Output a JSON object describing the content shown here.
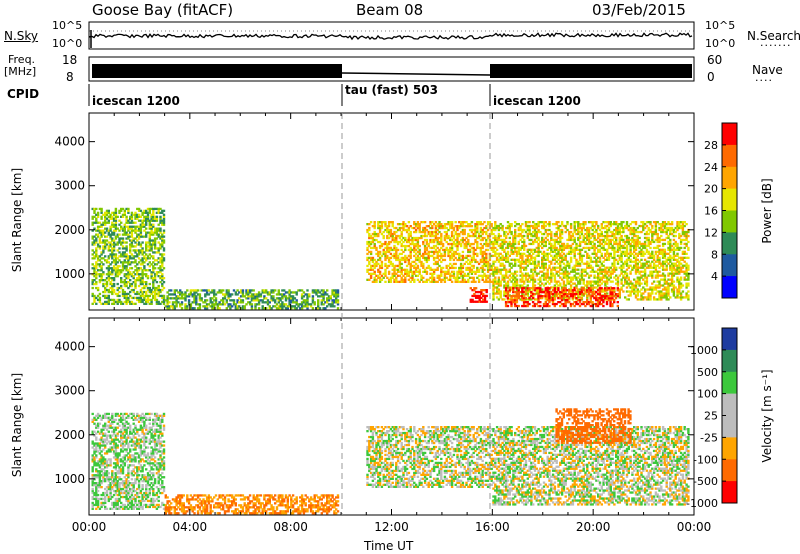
{
  "header": {
    "station": "Goose Bay (fitACF)",
    "beam": "Beam 08",
    "date": "03/Feb/2015"
  },
  "panels": {
    "noise": {
      "left_label": "N.Sky",
      "left_ticks": [
        "10^5",
        "10^0"
      ],
      "right_ticks": [
        "10^5",
        "10^0"
      ],
      "right_label": "N.Search"
    },
    "freq": {
      "left_label_top": "Freq.",
      "left_label_unit": "[MHz]",
      "left_ticks": [
        "18",
        "8"
      ],
      "right_ticks": [
        "60",
        "0"
      ],
      "right_label": "Nave"
    },
    "cpid": {
      "label": "CPID",
      "segments": [
        "icescan 1200",
        "tau (fast) 503",
        "icescan 1200"
      ]
    }
  },
  "chart_data": [
    {
      "type": "heatmap",
      "name": "power",
      "ylabel": "Slant Range [km]",
      "xlabel": "",
      "xlim": [
        "00:00",
        "24:00"
      ],
      "ylim": [
        180,
        4650
      ],
      "xticks": [
        "00:00",
        "04:00",
        "08:00",
        "12:00",
        "16:00",
        "20:00",
        "00:00"
      ],
      "yticks": [
        1000,
        2000,
        3000,
        4000
      ],
      "colorbar": {
        "label": "Power [dB]",
        "ticks": [
          "28",
          "24",
          "20",
          "16",
          "12",
          "8",
          "4"
        ],
        "colors": [
          "#ff0000",
          "#ff6a00",
          "#ffa500",
          "#e6e600",
          "#80c800",
          "#2e8b57",
          "#1e5aa0",
          "#0000ff"
        ]
      },
      "regions": [
        {
          "t0": 0.1,
          "t1": 3.0,
          "r0": 300,
          "r1": 2500,
          "level": 12
        },
        {
          "t0": 3.0,
          "t1": 9.9,
          "r0": 200,
          "r1": 650,
          "level": 10
        },
        {
          "t0": 11.0,
          "t1": 16.0,
          "r0": 800,
          "r1": 2200,
          "level": 18
        },
        {
          "t0": 15.1,
          "t1": 15.8,
          "r0": 350,
          "r1": 700,
          "level": 28
        },
        {
          "t0": 16.0,
          "t1": 23.8,
          "r0": 400,
          "r1": 2200,
          "level": 16
        },
        {
          "t0": 16.5,
          "t1": 21.0,
          "r0": 250,
          "r1": 700,
          "level": 26
        }
      ]
    },
    {
      "type": "heatmap",
      "name": "velocity",
      "ylabel": "Slant Range [km]",
      "xlabel": "Time UT",
      "xlim": [
        "00:00",
        "24:00"
      ],
      "ylim": [
        180,
        4650
      ],
      "xticks": [
        "00:00",
        "04:00",
        "08:00",
        "12:00",
        "16:00",
        "20:00",
        "00:00"
      ],
      "yticks": [
        1000,
        2000,
        3000,
        4000
      ],
      "colorbar": {
        "label": "Velocity [m s⁻¹]",
        "ticks": [
          "1000",
          "500",
          "100",
          "25",
          "-25",
          "-100",
          "-500",
          "-1000"
        ],
        "colors": [
          "#1e3ca0",
          "#2e8b57",
          "#3cc83c",
          "#bdbdbd",
          "#bdbdbd",
          "#ffa500",
          "#ff6a00",
          "#ff0000"
        ]
      },
      "regions": [
        {
          "t0": 0.1,
          "t1": 3.0,
          "r0": 300,
          "r1": 2500,
          "vel": 25
        },
        {
          "t0": 3.0,
          "t1": 9.9,
          "r0": 200,
          "r1": 650,
          "vel": -200
        },
        {
          "t0": 11.0,
          "t1": 16.0,
          "r0": 800,
          "r1": 2200,
          "vel": 0
        },
        {
          "t0": 16.0,
          "t1": 23.8,
          "r0": 400,
          "r1": 2200,
          "vel": 0
        },
        {
          "t0": 18.5,
          "t1": 21.5,
          "r0": 1800,
          "r1": 2600,
          "vel": -300
        }
      ]
    }
  ]
}
